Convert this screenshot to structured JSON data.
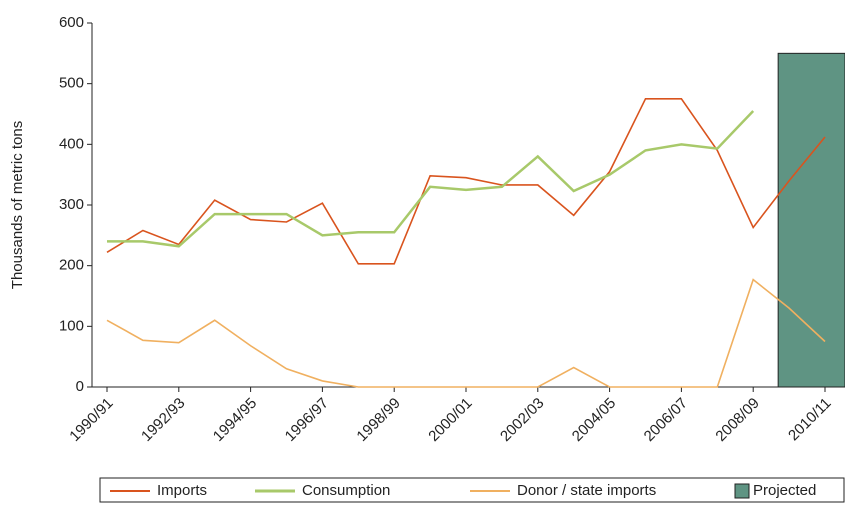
{
  "chart_data": {
    "type": "line",
    "y_label": "Thousands of metric tons",
    "categories": [
      "1990/91",
      null,
      "1992/93",
      null,
      "1994/95",
      null,
      "1996/97",
      null,
      "1998/99",
      null,
      "2000/01",
      null,
      "2002/03",
      null,
      "2004/05",
      null,
      "2006/07",
      null,
      "2008/09",
      null,
      "2010/11"
    ],
    "series": [
      {
        "name": "Imports",
        "color": "#d9541e",
        "values": [
          222,
          258,
          235,
          308,
          276,
          272,
          303,
          203,
          203,
          348,
          345,
          333,
          333,
          283,
          355,
          475,
          475,
          390,
          263,
          340,
          412
        ]
      },
      {
        "name": "Consumption",
        "color": "#a8c96a",
        "values": [
          240,
          240,
          232,
          285,
          285,
          285,
          250,
          255,
          255,
          330,
          325,
          330,
          380,
          323,
          350,
          390,
          400,
          393,
          455,
          null,
          null
        ]
      },
      {
        "name": "Donor / state imports",
        "color": "#f0b060",
        "values": [
          110,
          77,
          73,
          110,
          68,
          30,
          10,
          0,
          0,
          0,
          0,
          0,
          0,
          32,
          0,
          0,
          0,
          0,
          177,
          130,
          75
        ]
      }
    ],
    "projected": {
      "name": "Projected",
      "color": "#5f9483",
      "value": 550
    },
    "ylim": [
      0,
      600
    ],
    "yticks": [
      0,
      100,
      200,
      300,
      400,
      500,
      600
    ]
  }
}
